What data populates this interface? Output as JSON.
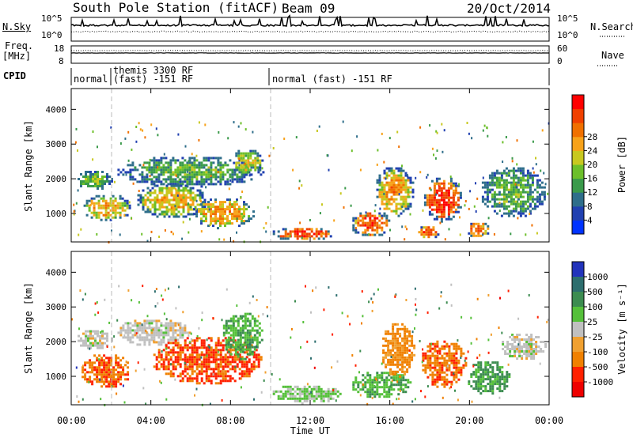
{
  "header": {
    "station": "South Pole Station (fitACF)",
    "beam": "Beam 09",
    "date": "20/Oct/2014"
  },
  "top_panel": {
    "left_label": "N.Sky",
    "right_label": "N.Search",
    "left_ticks": [
      "10^5",
      "10^0"
    ],
    "right_ticks": [
      "10^5",
      "10^0"
    ]
  },
  "freq_panel": {
    "left_label_1": "Freq.",
    "left_label_2": "[MHz]",
    "right_label": "Nave",
    "left_ticks": [
      "18",
      "8"
    ],
    "right_ticks": [
      "60",
      "0"
    ]
  },
  "cpid": {
    "label": "CPID",
    "segments": [
      {
        "line1": "normal",
        "line2": ""
      },
      {
        "line1": "themis 3300 RF",
        "line2": "(fast) -151 RF"
      },
      {
        "line1": "normal (fast) -151 RF",
        "line2": ""
      }
    ]
  },
  "x_axis": {
    "title": "Time UT",
    "ticks": [
      "00:00",
      "04:00",
      "08:00",
      "12:00",
      "16:00",
      "20:00",
      "00:00"
    ]
  },
  "y_axis": {
    "title": "Slant Range [km]",
    "ticks": [
      "1000",
      "2000",
      "3000",
      "4000"
    ]
  },
  "power_scale": {
    "label": "Power [dB]",
    "ticks": [
      "4",
      "8",
      "12",
      "16",
      "20",
      "24",
      "28"
    ],
    "colors": [
      "#0033ff",
      "#2040b0",
      "#2e6e8a",
      "#3a9a4a",
      "#6cbf2a",
      "#c8c820",
      "#f7a21a",
      "#f07000",
      "#f04000",
      "#ff0000"
    ]
  },
  "velocity_scale": {
    "label": "Velocity [m s⁻¹]",
    "ticks": [
      "1000",
      "500",
      "100",
      "25",
      "-25",
      "-100",
      "-500",
      "-1000"
    ],
    "colors": [
      "#2233bb",
      "#2d6e6e",
      "#3c8c50",
      "#55c03a",
      "#c0c0c0",
      "#f0a030",
      "#f08000",
      "#ff2000",
      "#ee0000"
    ]
  },
  "chart_data": [
    {
      "type": "heatmap",
      "title": "Power",
      "xlabel": "Time UT",
      "ylabel": "Slant Range [km]",
      "xlim": [
        0,
        24
      ],
      "ylim": [
        180,
        4600
      ],
      "colorbar_label": "Power [dB]",
      "clim": [
        0,
        30
      ],
      "blobs": [
        {
          "t0": 0.2,
          "t1": 2.0,
          "r0": 1700,
          "r1": 2300,
          "v": 10
        },
        {
          "t0": 0.5,
          "t1": 3.0,
          "r0": 800,
          "r1": 1600,
          "v": 16
        },
        {
          "t0": 2.2,
          "t1": 9.6,
          "r0": 1800,
          "r1": 2700,
          "v": 9
        },
        {
          "t0": 3.2,
          "t1": 6.8,
          "r0": 900,
          "r1": 1900,
          "v": 15
        },
        {
          "t0": 6.0,
          "t1": 9.2,
          "r0": 600,
          "r1": 1500,
          "v": 17
        },
        {
          "t0": 8.0,
          "t1": 9.6,
          "r0": 2100,
          "r1": 2900,
          "v": 13
        },
        {
          "t0": 10.0,
          "t1": 13.2,
          "r0": 250,
          "r1": 650,
          "v": 23
        },
        {
          "t0": 14.0,
          "t1": 16.0,
          "r0": 350,
          "r1": 1100,
          "v": 22
        },
        {
          "t0": 15.2,
          "t1": 17.2,
          "r0": 900,
          "r1": 2400,
          "v": 17
        },
        {
          "t0": 17.6,
          "t1": 19.6,
          "r0": 800,
          "r1": 2100,
          "v": 24
        },
        {
          "t0": 17.3,
          "t1": 18.5,
          "r0": 300,
          "r1": 700,
          "v": 22
        },
        {
          "t0": 19.8,
          "t1": 21.0,
          "r0": 300,
          "r1": 800,
          "v": 20
        },
        {
          "t0": 20.5,
          "t1": 23.8,
          "r0": 900,
          "r1": 2400,
          "v": 9
        }
      ]
    },
    {
      "type": "heatmap",
      "title": "Velocity",
      "xlabel": "Time UT",
      "ylabel": "Slant Range [km]",
      "xlim": [
        0,
        24
      ],
      "ylim": [
        180,
        4600
      ],
      "colorbar_label": "Velocity [m s⁻¹]",
      "clim": [
        -1000,
        1000
      ],
      "blobs": [
        {
          "t0": 0.2,
          "t1": 2.0,
          "r0": 1800,
          "r1": 2400,
          "v": 0
        },
        {
          "t0": 0.4,
          "t1": 3.0,
          "r0": 700,
          "r1": 1700,
          "v": -500
        },
        {
          "t0": 2.2,
          "t1": 6.0,
          "r0": 1900,
          "r1": 2700,
          "v": 0
        },
        {
          "t0": 4.0,
          "t1": 9.6,
          "r0": 800,
          "r1": 2200,
          "v": -600
        },
        {
          "t0": 7.5,
          "t1": 9.6,
          "r0": 1500,
          "r1": 2900,
          "v": 300
        },
        {
          "t0": 10.0,
          "t1": 13.5,
          "r0": 250,
          "r1": 800,
          "v": 150
        },
        {
          "t0": 14.0,
          "t1": 17.0,
          "r0": 400,
          "r1": 1200,
          "v": 300
        },
        {
          "t0": 15.5,
          "t1": 17.2,
          "r0": 1000,
          "r1": 2600,
          "v": -400
        },
        {
          "t0": 17.5,
          "t1": 19.8,
          "r0": 700,
          "r1": 2100,
          "v": -500
        },
        {
          "t0": 19.8,
          "t1": 22.0,
          "r0": 500,
          "r1": 1500,
          "v": 400
        },
        {
          "t0": 21.5,
          "t1": 23.8,
          "r0": 1500,
          "r1": 2300,
          "v": 0
        }
      ]
    }
  ]
}
